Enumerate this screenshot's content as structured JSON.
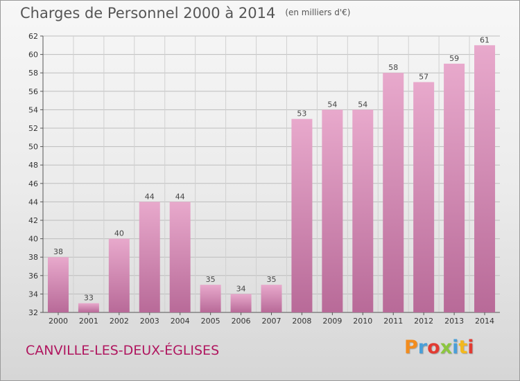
{
  "title": "Charges de Personnel 2000 à 2014",
  "subtitle": "(en milliers d'€)",
  "city": "CANVILLE-LES-DEUX-ÉGLISES",
  "logo": {
    "text": "Proxiti",
    "letter_colors": [
      "#f28c1e",
      "#4a9fd8",
      "#e23b32",
      "#8cc63f",
      "#4a9fd8",
      "#f2b81e",
      "#e23b32"
    ]
  },
  "colors": {
    "bar_light": "#e8a9cc",
    "bar_dark": "#b86a98",
    "city": "#b0165f"
  },
  "chart_data": {
    "type": "bar",
    "title": "Charges de Personnel 2000 à 2014",
    "subtitle": "(en milliers d'€)",
    "xlabel": "",
    "ylabel": "",
    "categories": [
      "2000",
      "2001",
      "2002",
      "2003",
      "2004",
      "2005",
      "2006",
      "2007",
      "2008",
      "2009",
      "2010",
      "2011",
      "2012",
      "2013",
      "2014"
    ],
    "values": [
      38,
      33,
      40,
      44,
      44,
      35,
      34,
      35,
      53,
      54,
      54,
      58,
      57,
      59,
      61
    ],
    "ylim": [
      32,
      62
    ],
    "yticks": [
      32,
      34,
      36,
      38,
      40,
      42,
      44,
      46,
      48,
      50,
      52,
      54,
      56,
      58,
      60,
      62
    ],
    "grid": true
  }
}
